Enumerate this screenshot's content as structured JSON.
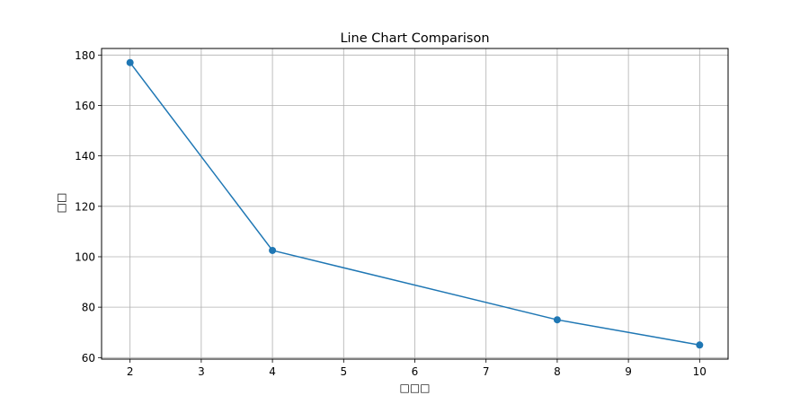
{
  "chart_data": {
    "type": "line",
    "title": "Line Chart Comparison",
    "xlabel": "□□□",
    "ylabel": "□□",
    "x": [
      2,
      4,
      8,
      10
    ],
    "series": [
      {
        "values": [
          177,
          102.5,
          75,
          65
        ],
        "color": "#1f77b4",
        "marker": "circle"
      }
    ],
    "xlim": [
      1.6,
      10.4
    ],
    "ylim": [
      59.4,
      182.6
    ],
    "xticks": [
      2,
      3,
      4,
      5,
      6,
      7,
      8,
      9,
      10
    ],
    "yticks": [
      60,
      80,
      100,
      120,
      140,
      160,
      180
    ],
    "grid": true
  }
}
